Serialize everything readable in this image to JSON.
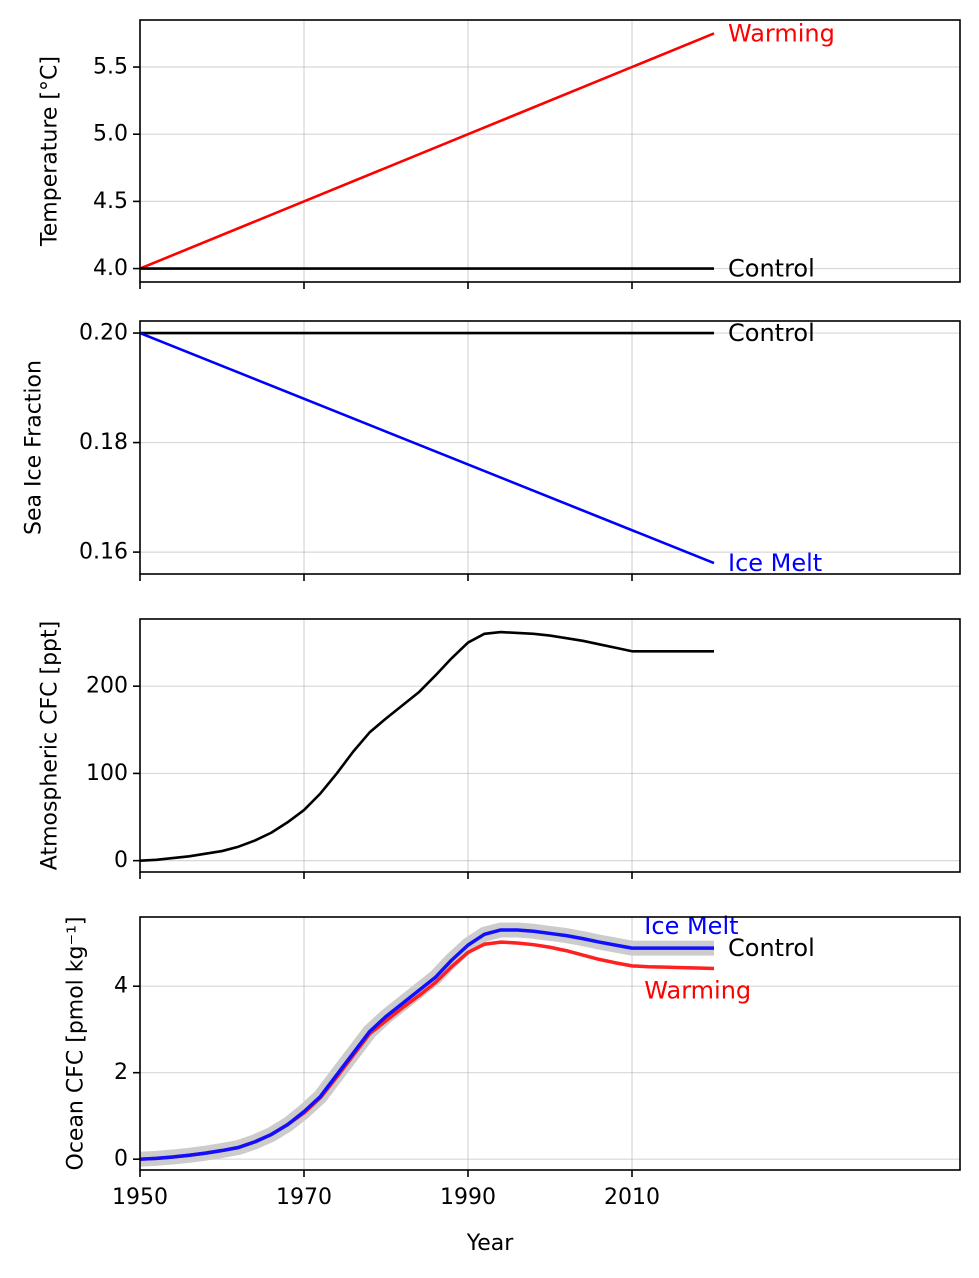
{
  "chart_data": [
    {
      "type": "line",
      "xlabel": "",
      "ylabel": "Temperature [°C]",
      "xlim": [
        1950,
        2050
      ],
      "ylim": [
        3.9,
        5.85
      ],
      "yticks": [
        4.0,
        4.5,
        5.0,
        5.5
      ],
      "ytick_labels": [
        "4.0",
        "4.5",
        "5.0",
        "5.5"
      ],
      "xticks": [
        1950,
        1970,
        1990,
        2010
      ],
      "xtick_labels": [
        "",
        "",
        "",
        ""
      ],
      "grid": true,
      "series": [
        {
          "name": "Warming",
          "color": "#ff0000",
          "x": [
            1950,
            2020
          ],
          "y": [
            4.0,
            5.75
          ]
        },
        {
          "name": "Control",
          "color": "#000000",
          "x": [
            1950,
            2020
          ],
          "y": [
            4.0,
            4.0
          ]
        }
      ]
    },
    {
      "type": "line",
      "xlabel": "",
      "ylabel": "Sea Ice Fraction",
      "xlim": [
        1950,
        2050
      ],
      "ylim": [
        0.156,
        0.2022
      ],
      "yticks": [
        0.16,
        0.18,
        0.2
      ],
      "ytick_labels": [
        "0.16",
        "0.18",
        "0.20"
      ],
      "xticks": [
        1950,
        1970,
        1990,
        2010
      ],
      "xtick_labels": [
        "",
        "",
        "",
        ""
      ],
      "grid": true,
      "series": [
        {
          "name": "Control",
          "color": "#000000",
          "x": [
            1950,
            2020
          ],
          "y": [
            0.2,
            0.2
          ]
        },
        {
          "name": "Ice Melt",
          "color": "#0000ff",
          "x": [
            1950,
            2020
          ],
          "y": [
            0.2,
            0.158
          ]
        }
      ]
    },
    {
      "type": "line",
      "xlabel": "",
      "ylabel": "Atmospheric CFC [ppt]",
      "xlim": [
        1950,
        2050
      ],
      "ylim": [
        -13,
        277
      ],
      "yticks": [
        0,
        100,
        200
      ],
      "ytick_labels": [
        "0",
        "100",
        "200"
      ],
      "xticks": [
        1950,
        1970,
        1990,
        2010
      ],
      "xtick_labels": [
        "",
        "",
        "",
        ""
      ],
      "grid": true,
      "series": [
        {
          "color": "#000000",
          "x": [
            1950,
            1952,
            1954,
            1956,
            1958,
            1960,
            1962,
            1964,
            1966,
            1968,
            1970,
            1972,
            1974,
            1976,
            1978,
            1980,
            1982,
            1984,
            1986,
            1988,
            1990,
            1992,
            1994,
            1996,
            1998,
            2000,
            2002,
            2004,
            2006,
            2008,
            2010,
            2012,
            2014,
            2016,
            2018,
            2020
          ],
          "y": [
            0,
            1,
            3,
            5,
            8,
            11,
            16,
            23,
            32,
            44,
            58,
            77,
            100,
            125,
            147,
            163,
            178,
            193,
            212,
            232,
            250,
            260,
            262,
            261,
            260,
            258,
            255,
            252,
            248,
            244,
            240,
            240,
            240,
            240,
            240,
            240
          ]
        }
      ]
    },
    {
      "type": "line",
      "xlabel": "Year",
      "ylabel": "Ocean CFC [pmol kg⁻¹]",
      "xlim": [
        1950,
        2050
      ],
      "ylim": [
        -0.25,
        5.6
      ],
      "yticks": [
        0,
        2,
        4
      ],
      "ytick_labels": [
        "0",
        "2",
        "4"
      ],
      "xticks": [
        1950,
        1970,
        1990,
        2010
      ],
      "xtick_labels": [
        "1950",
        "1970",
        "1990",
        "2010"
      ],
      "grid": true,
      "x": [
        1950,
        1952,
        1954,
        1956,
        1958,
        1960,
        1962,
        1964,
        1966,
        1968,
        1970,
        1972,
        1974,
        1976,
        1978,
        1980,
        1982,
        1984,
        1986,
        1988,
        1990,
        1992,
        1994,
        1996,
        1998,
        2000,
        2002,
        2004,
        2006,
        2008,
        2010,
        2012,
        2014,
        2016,
        2018,
        2020
      ],
      "band": {
        "color": "#cccccc",
        "y": [
          0.0,
          0.02,
          0.05,
          0.09,
          0.14,
          0.2,
          0.27,
          0.4,
          0.57,
          0.8,
          1.1,
          1.45,
          1.95,
          2.45,
          2.95,
          3.3,
          3.6,
          3.9,
          4.2,
          4.6,
          4.95,
          5.2,
          5.3,
          5.3,
          5.27,
          5.22,
          5.17,
          5.1,
          5.02,
          4.95,
          4.88,
          4.88,
          4.88,
          4.88,
          4.88,
          4.88
        ]
      },
      "series": [
        {
          "name": "Warming",
          "color": "#ff2020",
          "y": [
            0.0,
            0.02,
            0.05,
            0.09,
            0.14,
            0.2,
            0.27,
            0.4,
            0.57,
            0.8,
            1.07,
            1.42,
            1.9,
            2.4,
            2.9,
            3.2,
            3.5,
            3.78,
            4.08,
            4.45,
            4.78,
            4.97,
            5.02,
            5.0,
            4.96,
            4.9,
            4.82,
            4.72,
            4.62,
            4.54,
            4.47,
            4.45,
            4.44,
            4.43,
            4.42,
            4.41
          ]
        },
        {
          "name": "Ice Melt",
          "color": "#1010ff",
          "y": [
            0.0,
            0.02,
            0.05,
            0.09,
            0.14,
            0.2,
            0.27,
            0.4,
            0.57,
            0.8,
            1.1,
            1.45,
            1.95,
            2.45,
            2.95,
            3.3,
            3.6,
            3.9,
            4.2,
            4.6,
            4.95,
            5.2,
            5.3,
            5.3,
            5.27,
            5.22,
            5.17,
            5.1,
            5.02,
            4.95,
            4.88,
            4.88,
            4.88,
            4.88,
            4.88,
            4.88
          ]
        }
      ],
      "labels": [
        {
          "text": "Ice Melt",
          "color": "#0000ff"
        },
        {
          "text": "Control",
          "color": "#000000"
        },
        {
          "text": "Warming",
          "color": "#ff0000"
        }
      ]
    }
  ]
}
